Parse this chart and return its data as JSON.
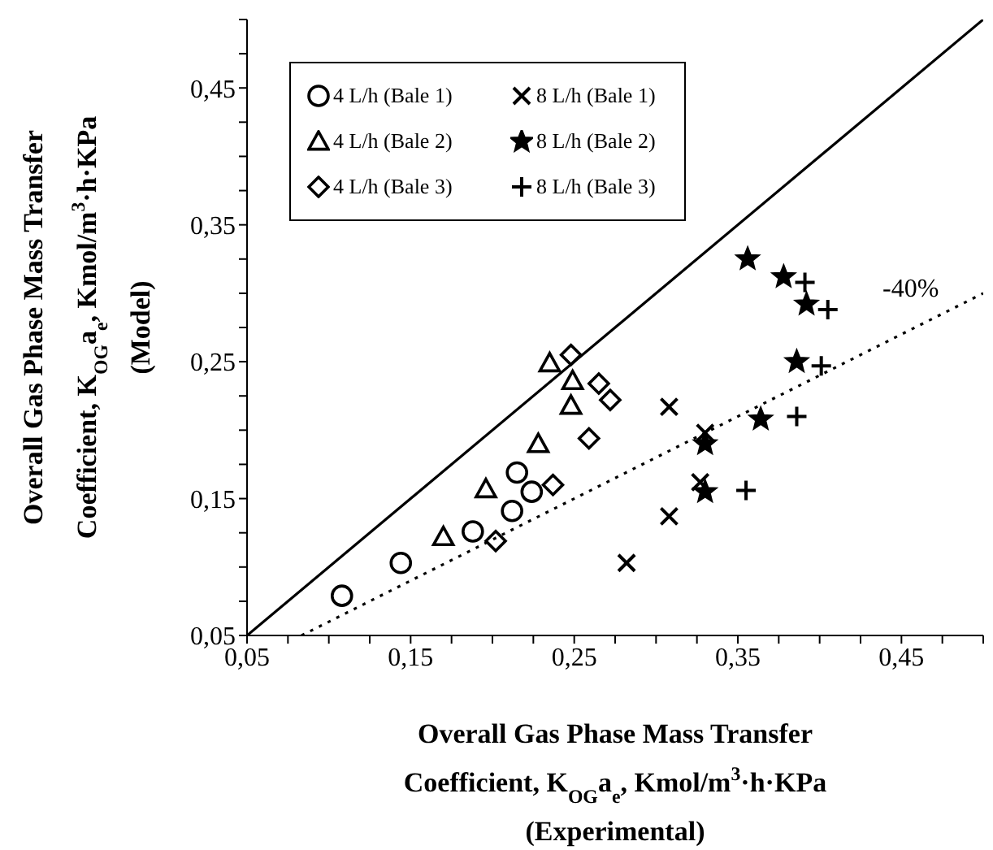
{
  "chart_data": {
    "type": "scatter",
    "xlabel": "Overall Gas Phase Mass Transfer\nCoefficient, K$_{OG}$a$_{e}$, Kmol/m$^{3}$·h·KPa\n(Experimental)",
    "ylabel": "Overall Gas Phase Mass Transfer\nCoefficient, K$_{OG}$a$_{e}$, Kmol/m$^{3}$·h·KPa\n(Model)",
    "xlim": [
      0.05,
      0.5
    ],
    "ylim": [
      0.05,
      0.5
    ],
    "xticks": [
      {
        "value": 0.05,
        "label": "0,05"
      },
      {
        "value": 0.075,
        "label": null
      },
      {
        "value": 0.1,
        "label": null
      },
      {
        "value": 0.125,
        "label": null
      },
      {
        "value": 0.15,
        "label": "0,15"
      },
      {
        "value": 0.175,
        "label": null
      },
      {
        "value": 0.2,
        "label": null
      },
      {
        "value": 0.225,
        "label": null
      },
      {
        "value": 0.25,
        "label": "0,25"
      },
      {
        "value": 0.275,
        "label": null
      },
      {
        "value": 0.3,
        "label": null
      },
      {
        "value": 0.325,
        "label": null
      },
      {
        "value": 0.35,
        "label": "0,35"
      },
      {
        "value": 0.375,
        "label": null
      },
      {
        "value": 0.4,
        "label": null
      },
      {
        "value": 0.425,
        "label": null
      },
      {
        "value": 0.45,
        "label": "0,45"
      },
      {
        "value": 0.475,
        "label": null
      },
      {
        "value": 0.5,
        "label": null
      }
    ],
    "yticks": [
      {
        "value": 0.05,
        "label": "0,05"
      },
      {
        "value": 0.075,
        "label": null
      },
      {
        "value": 0.1,
        "label": null
      },
      {
        "value": 0.125,
        "label": null
      },
      {
        "value": 0.15,
        "label": "0,15"
      },
      {
        "value": 0.175,
        "label": null
      },
      {
        "value": 0.2,
        "label": null
      },
      {
        "value": 0.225,
        "label": null
      },
      {
        "value": 0.25,
        "label": "0,25"
      },
      {
        "value": 0.275,
        "label": null
      },
      {
        "value": 0.3,
        "label": null
      },
      {
        "value": 0.325,
        "label": null
      },
      {
        "value": 0.35,
        "label": "0,35"
      },
      {
        "value": 0.375,
        "label": null
      },
      {
        "value": 0.4,
        "label": null
      },
      {
        "value": 0.425,
        "label": null
      },
      {
        "value": 0.45,
        "label": "0,45"
      },
      {
        "value": 0.475,
        "label": null
      },
      {
        "value": 0.5,
        "label": null
      }
    ],
    "grid": false,
    "legend": "top left",
    "annotations": [
      "-40%"
    ],
    "series": [
      {
        "name": "4 L/h (Bale 1)",
        "color": "#000000",
        "marker": "circle",
        "x": [
          0.108,
          0.144,
          0.188,
          0.212,
          0.224,
          0.215
        ],
        "values": [
          0.079,
          0.103,
          0.126,
          0.141,
          0.155,
          0.169
        ]
      },
      {
        "name": "4 L/h (Bale 2)",
        "color": "#000000",
        "marker": "triangle",
        "x": [
          0.17,
          0.196,
          0.228,
          0.248,
          0.249,
          0.235
        ],
        "values": [
          0.122,
          0.157,
          0.19,
          0.218,
          0.236,
          0.249
        ]
      },
      {
        "name": "4 L/h (Bale 3)",
        "color": "#000000",
        "marker": "diamond",
        "x": [
          0.202,
          0.237,
          0.259,
          0.248,
          0.265,
          0.272
        ],
        "values": [
          0.119,
          0.16,
          0.194,
          0.255,
          0.234,
          0.222
        ]
      },
      {
        "name": "8 L/h (Bale 1)",
        "color": "#000000",
        "marker": "cross",
        "x": [
          0.308,
          0.33,
          0.308,
          0.282,
          0.327
        ],
        "values": [
          0.217,
          0.198,
          0.137,
          0.103,
          0.162
        ]
      },
      {
        "name": "8 L/h (Bale 2)",
        "color": "#000000",
        "marker": "star",
        "x": [
          0.356,
          0.378,
          0.392,
          0.386,
          0.364,
          0.33,
          0.33
        ],
        "values": [
          0.325,
          0.312,
          0.292,
          0.25,
          0.208,
          0.19,
          0.155
        ]
      },
      {
        "name": "8 L/h (Bale 3)",
        "color": "#000000",
        "marker": "plus",
        "x": [
          0.391,
          0.405,
          0.401,
          0.386,
          0.355
        ],
        "values": [
          0.308,
          0.288,
          0.247,
          0.21,
          0.156
        ]
      },
      {
        "type": "line",
        "color": "#000000",
        "marker": "none",
        "line_style": "solid",
        "x": [
          0.05,
          0.5
        ],
        "values": [
          0.05,
          0.5
        ]
      },
      {
        "type": "line",
        "color": "#000000",
        "marker": "none",
        "line_style": "dotted",
        "x": [
          0.0833,
          0.5
        ],
        "values": [
          0.05,
          0.3
        ]
      }
    ]
  }
}
